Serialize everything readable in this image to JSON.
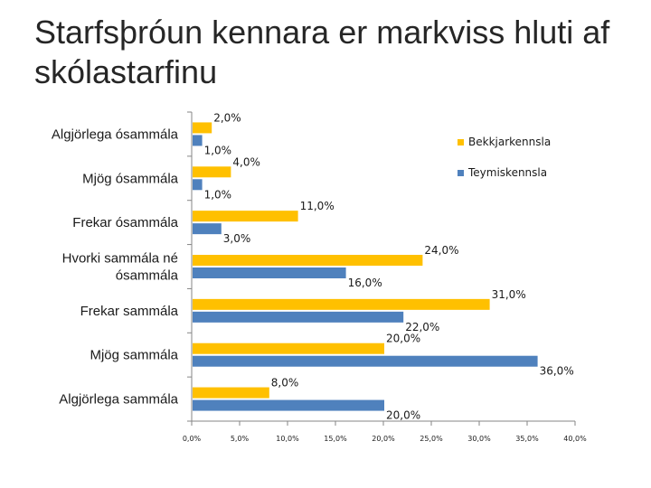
{
  "title": "Starfsþróun kennara er markviss hluti af skólastarfinu",
  "chart_data": {
    "type": "bar",
    "orientation": "horizontal",
    "title": "Starfsþróun kennara er markviss hluti af skólastarfinu",
    "categories": [
      "Algjörlega ósammála",
      "Mjög ósammála",
      "Frekar ósammála",
      "Hvorki sammála né ósammála",
      "Frekar sammála",
      "Mjög sammála",
      "Algjörlega sammála"
    ],
    "series": [
      {
        "name": "Bekkjarkennsla",
        "color": "#FFC000",
        "values": [
          2.0,
          4.0,
          11.0,
          24.0,
          31.0,
          20.0,
          8.0
        ],
        "labels": [
          "2,0%",
          "4,0%",
          "11,0%",
          "24,0%",
          "31,0%",
          "20,0%",
          "8,0%"
        ]
      },
      {
        "name": "Teymiskennsla",
        "color": "#4F81BD",
        "values": [
          1.0,
          1.0,
          3.0,
          16.0,
          22.0,
          36.0,
          20.0
        ],
        "labels": [
          "1,0%",
          "1,0%",
          "3,0%",
          "16,0%",
          "22,0%",
          "36,0%",
          "20,0%"
        ]
      }
    ],
    "xlim": [
      0,
      40
    ],
    "x_ticks": [
      "0,0%",
      "5,0%",
      "10,0%",
      "15,0%",
      "20,0%",
      "25,0%",
      "30,0%",
      "35,0%",
      "40,0%"
    ],
    "legend": "top-right",
    "grid": false
  }
}
